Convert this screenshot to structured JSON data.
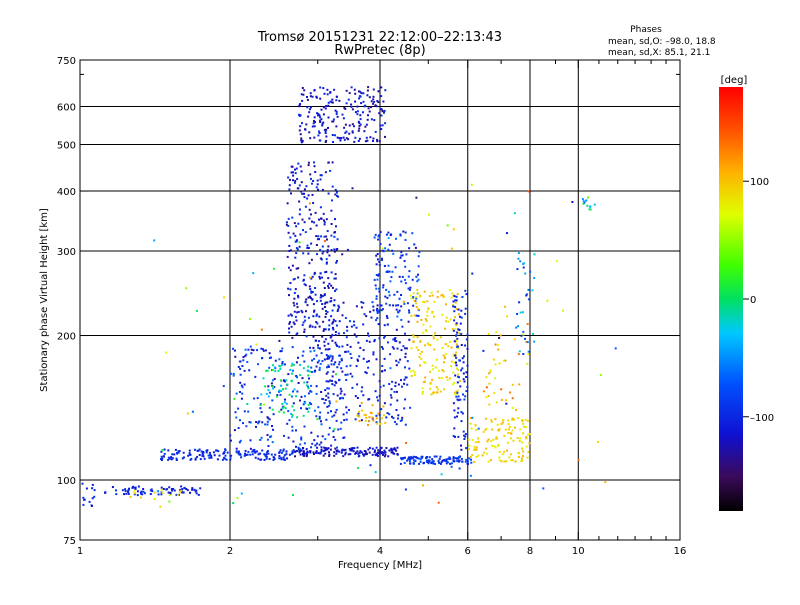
{
  "chart_data": {
    "type": "scatter",
    "title": "Tromsø 20151231 22:12:00–22:13:43",
    "subtitle": "RwPretec (8p)",
    "phases": {
      "title": "Phases",
      "line_o": "mean, sd,O: –98.0, 18.8",
      "line_x": "mean, sd,X: 85.1, 21.1"
    },
    "xlabel": "Frequency [MHz]",
    "ylabel": "Stationary phase Virtual Height [km]",
    "xscale": "log",
    "yscale": "log",
    "xlim": [
      1,
      16
    ],
    "ylim": [
      75,
      750
    ],
    "x_ticks": [
      1,
      2,
      4,
      6,
      8,
      10,
      16
    ],
    "x_tick_labels": [
      "1",
      "2",
      "4",
      "6",
      "8",
      "10",
      "16"
    ],
    "x_minor_ticks": [
      3,
      5,
      7,
      9,
      11,
      12,
      13,
      14,
      15
    ],
    "y_ticks": [
      75,
      100,
      200,
      300,
      400,
      500,
      600,
      750
    ],
    "y_tick_labels": [
      "75",
      "100",
      "200",
      "300",
      "400",
      "500",
      "600",
      "750"
    ],
    "y_minor_ticks": [
      700
    ],
    "grid": true,
    "colorbar": {
      "label": "[deg]",
      "range": [
        -180,
        180
      ],
      "ticks": [
        100,
        0,
        -100
      ],
      "tick_labels": [
        "100",
        "0",
        "–100"
      ]
    },
    "series": [
      {
        "regions": [
          {
            "f": [
              1.0,
              1.07
            ],
            "h": [
              86,
              100
            ],
            "n": 14,
            "phase": [
              -110,
              -90
            ]
          },
          {
            "f": [
              1.12,
              1.75
            ],
            "h": [
              93,
              97
            ],
            "n": 75,
            "phase": [
              -115,
              -90
            ]
          },
          {
            "f": [
              1.25,
              1.6
            ],
            "h": [
              91,
              96
            ],
            "n": 12,
            "phase": [
              70,
              110
            ]
          },
          {
            "f": [
              1.45,
              2.7
            ],
            "h": [
              110,
              116
            ],
            "n": 160,
            "phase": [
              -110,
              -85
            ]
          },
          {
            "f": [
              2.7,
              4.4
            ],
            "h": [
              112,
              117
            ],
            "n": 150,
            "phase": [
              -135,
              -100
            ]
          },
          {
            "f": [
              4.4,
              6.1
            ],
            "h": [
              108,
              112
            ],
            "n": 110,
            "phase": [
              -110,
              -70
            ]
          },
          {
            "f": [
              6.0,
              8.0
            ],
            "h": [
              109,
              135
            ],
            "n": 120,
            "phase": [
              75,
              110
            ]
          },
          {
            "f": [
              2.0,
              3.4
            ],
            "h": [
              116,
              190
            ],
            "n": 260,
            "phase": [
              -130,
              -60
            ]
          },
          {
            "f": [
              2.3,
              2.9
            ],
            "h": [
              135,
              175
            ],
            "n": 70,
            "phase": [
              -40,
              20
            ]
          },
          {
            "f": [
              2.6,
              3.3
            ],
            "h": [
              190,
              460
            ],
            "n": 320,
            "phase": [
              -140,
              -85
            ]
          },
          {
            "f": [
              2.75,
              4.1
            ],
            "h": [
              505,
              660
            ],
            "n": 220,
            "phase": [
              -140,
              -90
            ]
          },
          {
            "f": [
              3.1,
              4.6
            ],
            "h": [
              130,
              240
            ],
            "n": 250,
            "phase": [
              -130,
              -80
            ]
          },
          {
            "f": [
              3.9,
              4.8
            ],
            "h": [
              215,
              330
            ],
            "n": 120,
            "phase": [
              -115,
              -60
            ]
          },
          {
            "f": [
              3.6,
              4.1
            ],
            "h": [
              130,
              145
            ],
            "n": 25,
            "phase": [
              90,
              120
            ]
          },
          {
            "f": [
              4.6,
              5.8
            ],
            "h": [
              150,
              250
            ],
            "n": 170,
            "phase": [
              70,
              110
            ]
          },
          {
            "f": [
              5.6,
              6.0
            ],
            "h": [
              115,
              250
            ],
            "n": 90,
            "phase": [
              -120,
              -80
            ]
          },
          {
            "f": [
              6.5,
              8.0
            ],
            "h": [
              140,
              230
            ],
            "n": 40,
            "phase": [
              60,
              140
            ]
          },
          {
            "f": [
              7.5,
              8.2
            ],
            "h": [
              180,
              300
            ],
            "n": 30,
            "phase": [
              -100,
              -10
            ]
          },
          {
            "f": [
              1.4,
              12.0
            ],
            "h": [
              85,
              420
            ],
            "n": 90,
            "phase": [
              -150,
              150
            ]
          },
          {
            "f": [
              10.2,
              11.1
            ],
            "h": [
              365,
              390
            ],
            "n": 12,
            "phase": [
              -90,
              40
            ]
          }
        ]
      }
    ]
  }
}
